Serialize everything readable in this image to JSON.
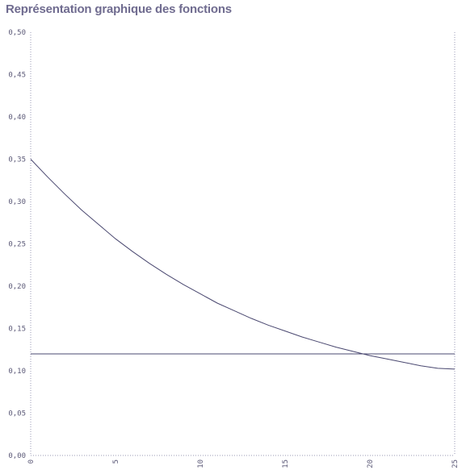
{
  "title": "Représentation graphique des fonctions",
  "chart_data": {
    "type": "line",
    "title": "Représentation graphique des fonctions",
    "xlabel": "",
    "ylabel": "",
    "xlim": [
      0,
      25
    ],
    "ylim": [
      0.0,
      0.5
    ],
    "xticks": [
      0,
      5,
      10,
      15,
      20,
      25
    ],
    "yticks": [
      0.0,
      0.05,
      0.1,
      0.15,
      0.2,
      0.25,
      0.3,
      0.35,
      0.4,
      0.45,
      0.5
    ],
    "ytick_labels": [
      "0,00",
      "0,05",
      "0,10",
      "0,15",
      "0,20",
      "0,25",
      "0,30",
      "0,35",
      "0,40",
      "0,45",
      "0,50"
    ],
    "xtick_labels": [
      "0",
      "5",
      "10",
      "15",
      "20",
      "25"
    ],
    "grid": false,
    "series": [
      {
        "x": [
          0,
          1,
          2,
          3,
          4,
          5,
          6,
          7,
          8,
          9,
          10,
          11,
          12,
          13,
          14,
          15,
          16,
          17,
          18,
          19,
          20,
          21,
          22,
          23,
          24,
          25
        ],
        "y": [
          0.35,
          0.329,
          0.309,
          0.29,
          0.273,
          0.256,
          0.241,
          0.227,
          0.214,
          0.202,
          0.191,
          0.18,
          0.171,
          0.162,
          0.154,
          0.147,
          0.14,
          0.134,
          0.128,
          0.123,
          0.118,
          0.114,
          0.11,
          0.106,
          0.103,
          0.102
        ],
        "color": "#4a4870"
      },
      {
        "x": [
          0,
          25
        ],
        "y": [
          0.12,
          0.12
        ],
        "color": "#4a4870"
      }
    ]
  }
}
